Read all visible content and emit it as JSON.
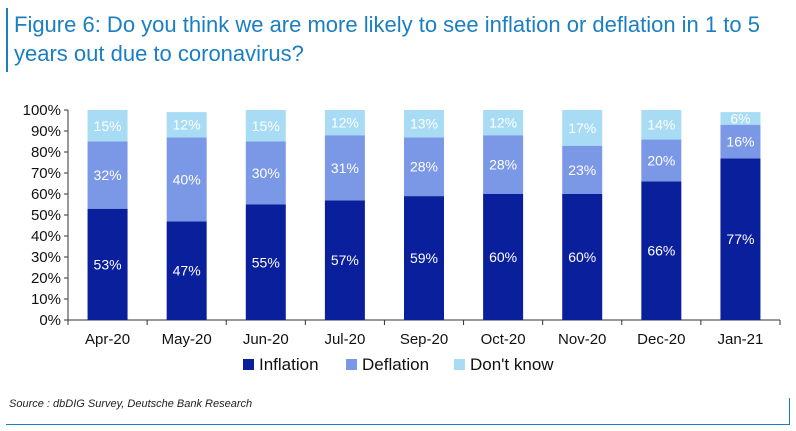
{
  "title": "Figure 6: Do you think we are more likely to see inflation or deflation in 1 to 5 years out due to coronavirus?",
  "source": "Source : dbDIG Survey, Deutsche Bank Research",
  "colors": {
    "title": "#1a7fc1",
    "inflation": "#0a1f9c",
    "deflation": "#7b98e6",
    "dont_know": "#a8dcf5"
  },
  "chart_data": {
    "type": "bar",
    "stacked": true,
    "title": "Figure 6: Do you think we are more likely to see inflation or deflation in 1 to 5 years out due to coronavirus?",
    "categories": [
      "Apr-20",
      "May-20",
      "Jun-20",
      "Jul-20",
      "Sep-20",
      "Oct-20",
      "Nov-20",
      "Dec-20",
      "Jan-21"
    ],
    "series": [
      {
        "name": "Inflation",
        "values": [
          53,
          47,
          55,
          57,
          59,
          60,
          60,
          66,
          77
        ]
      },
      {
        "name": "Deflation",
        "values": [
          32,
          40,
          30,
          31,
          28,
          28,
          23,
          20,
          16
        ]
      },
      {
        "name": "Don't know",
        "values": [
          15,
          12,
          15,
          12,
          13,
          12,
          17,
          14,
          6
        ]
      }
    ],
    "yticks": [
      "0%",
      "10%",
      "20%",
      "30%",
      "40%",
      "50%",
      "60%",
      "70%",
      "80%",
      "90%",
      "100%"
    ],
    "ylim": [
      0,
      100
    ],
    "xlabel": "",
    "ylabel": "",
    "legend_position": "bottom",
    "label_suffix": "%"
  }
}
